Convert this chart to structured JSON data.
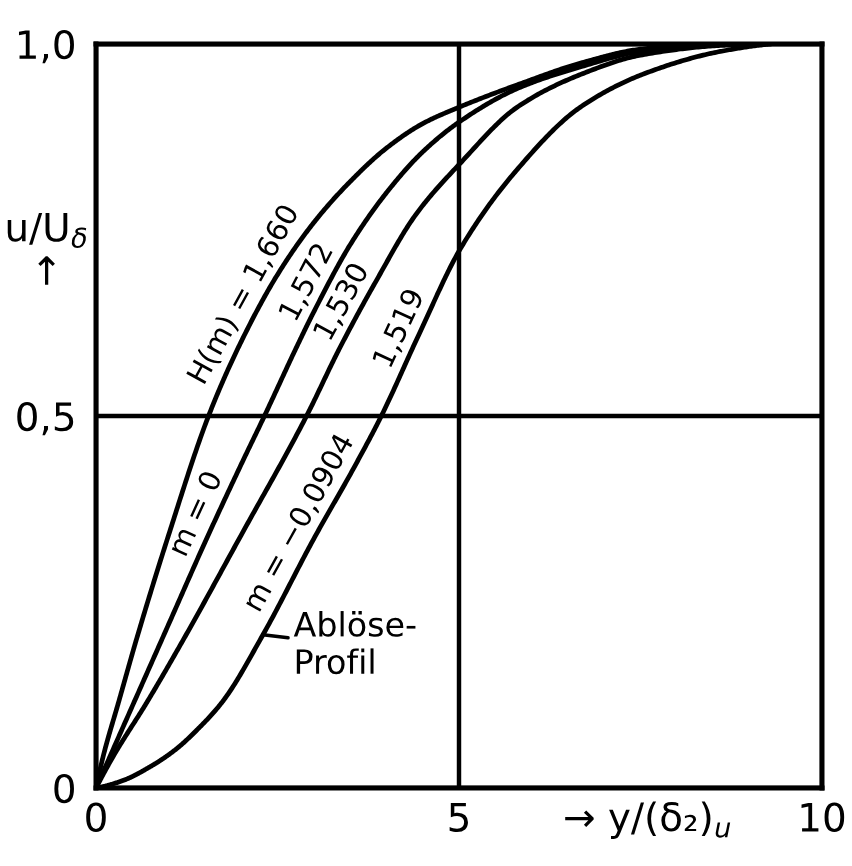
{
  "chart_data": {
    "type": "line",
    "xlabel": "→ y/(δ₂)$_{u}$",
    "ylabel": "u/U$_{δ}$\n↑",
    "xlim": [
      0,
      10
    ],
    "ylim": [
      0,
      1
    ],
    "xticks": [
      0,
      5,
      10
    ],
    "yticks": [
      0,
      {
        "value": 0.5,
        "label": "0,5"
      },
      {
        "value": 1,
        "label": "1,0"
      }
    ],
    "grid": true,
    "line_style": "solid",
    "series": [
      {
        "color": "#000000",
        "x": [
          0,
          0.1,
          0.31,
          0.57,
          1.0,
          1.55,
          2.0,
          2.5,
          3.0,
          3.5,
          4.0,
          4.5,
          5.0,
          5.8,
          6.7,
          7.5,
          8.5
        ],
        "values": [
          0,
          0.043,
          0.115,
          0.204,
          0.34,
          0.5,
          0.6,
          0.69,
          0.76,
          0.815,
          0.86,
          0.893,
          0.915,
          0.945,
          0.975,
          0.993,
          1.0
        ]
      },
      {
        "color": "#000000",
        "x": [
          0,
          0.5,
          1.0,
          1.5,
          2.0,
          2.32,
          2.75,
          3.0,
          3.5,
          4.0,
          4.5,
          5.0,
          5.8,
          6.7,
          7.5,
          8.6
        ],
        "values": [
          0,
          0.11,
          0.22,
          0.33,
          0.435,
          0.5,
          0.59,
          0.64,
          0.73,
          0.8,
          0.855,
          0.895,
          0.94,
          0.97,
          0.99,
          1.0
        ]
      },
      {
        "color": "#000000",
        "x": [
          0,
          0.24,
          0.7,
          1.23,
          2.0,
          2.9,
          3.35,
          3.85,
          4.4,
          5.02,
          5.8,
          6.7,
          7.5,
          8.6,
          9.2
        ],
        "values": [
          0,
          0.043,
          0.115,
          0.204,
          0.34,
          0.5,
          0.59,
          0.68,
          0.77,
          0.84,
          0.915,
          0.96,
          0.985,
          0.998,
          1.0
        ]
      },
      {
        "color": "#000000",
        "x": [
          0,
          0.37,
          0.77,
          1.1,
          1.38,
          1.75,
          2.3,
          3.0,
          3.55,
          3.93,
          4.45,
          5.02,
          5.79,
          6.67,
          7.55,
          8.6,
          9.3
        ],
        "values": [
          0,
          0.01,
          0.03,
          0.052,
          0.077,
          0.117,
          0.206,
          0.335,
          0.43,
          0.5,
          0.61,
          0.725,
          0.83,
          0.915,
          0.96,
          0.99,
          1.0
        ]
      }
    ],
    "annotations": [
      {
        "text": "H(m) = 1,660",
        "x": 2.28,
        "y": 0.65
      },
      {
        "text": "1,572",
        "x": 3.15,
        "y": 0.667
      },
      {
        "text": "1,530",
        "x": 3.63,
        "y": 0.64
      },
      {
        "text": "1,519",
        "x": 4.43,
        "y": 0.606
      },
      {
        "text": "m = 0",
        "x": 1.63,
        "y": 0.357
      },
      {
        "text": "m = −0,0904",
        "x": 3.04,
        "y": 0.343
      },
      {
        "text": "Ablöse-\nProfil",
        "x": 2.3,
        "y": 0.206
      }
    ]
  }
}
